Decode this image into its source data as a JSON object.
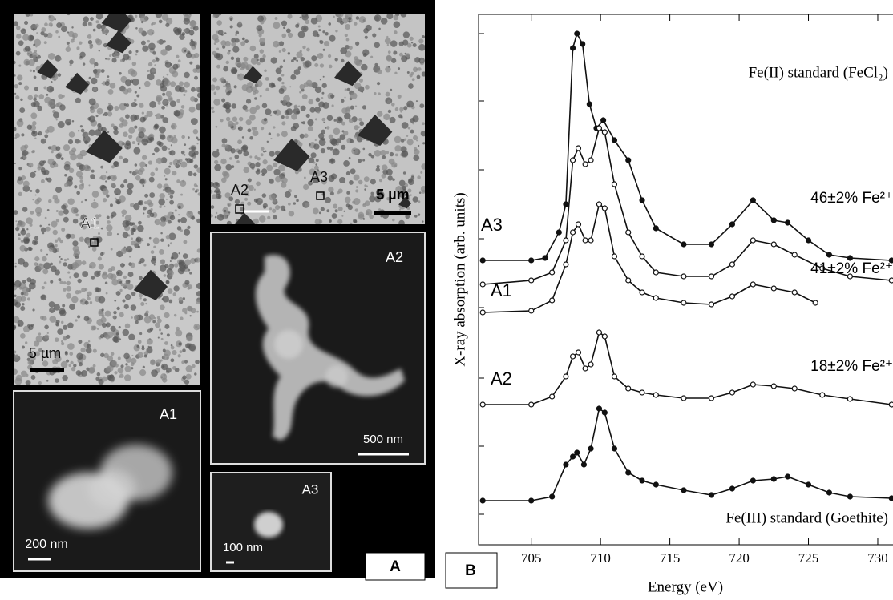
{
  "panel_a": {
    "label": "A",
    "overview_left": {
      "site": "A1",
      "scale": "5 µm"
    },
    "overview_right": {
      "sites": [
        "A2",
        "A3"
      ],
      "scale": "5 µm"
    },
    "zoom_a1": {
      "site": "A1",
      "scale": "200 nm"
    },
    "zoom_a2": {
      "site": "A2",
      "scale": "500 nm"
    },
    "zoom_a3": {
      "site": "A3",
      "scale": "100 nm"
    }
  },
  "chart_data": {
    "type": "line",
    "panel_label": "B",
    "x_label": "Energy (eV)",
    "y_label": "X-ray absorption (arb. units)",
    "xlim": [
      701.2,
      731.1
    ],
    "xticks": [
      705,
      710,
      715,
      720,
      725,
      730
    ],
    "ylim": [
      0,
      662
    ],
    "yticks": [
      38,
      123,
      208,
      296,
      382,
      468,
      554,
      638
    ],
    "series": [
      {
        "name": "Fe(II) standard (FeCl₂)",
        "marker": "filled",
        "color": "#111",
        "x": [
          701.5,
          705,
          706,
          707,
          707.5,
          708,
          708.3,
          708.7,
          709.2,
          709.7,
          710.2,
          711,
          712,
          713,
          714,
          716,
          718,
          719.5,
          721,
          722.5,
          723.5,
          725,
          726.5,
          728,
          731
        ],
        "values": [
          355,
          355,
          358,
          390,
          425,
          620,
          638,
          625,
          550,
          520,
          530,
          505,
          480,
          430,
          395,
          375,
          375,
          400,
          430,
          405,
          402,
          380,
          362,
          358,
          355
        ]
      },
      {
        "name": "A3",
        "fe2_label": "46±2% Fe²⁺",
        "marker": "open",
        "color": "#111",
        "x": [
          701.5,
          705,
          706.5,
          707.5,
          708,
          708.4,
          708.9,
          709.3,
          709.9,
          710.3,
          711,
          712,
          713,
          714,
          716,
          718,
          719.5,
          721,
          722.5,
          724,
          726,
          728,
          731
        ],
        "values": [
          325,
          330,
          340,
          380,
          480,
          495,
          475,
          480,
          520,
          515,
          450,
          390,
          360,
          340,
          335,
          335,
          350,
          380,
          375,
          362,
          345,
          335,
          330
        ]
      },
      {
        "name": "A1",
        "fe2_label": "41±2% Fe²⁺",
        "marker": "open",
        "color": "#111",
        "x": [
          701.5,
          705,
          706.5,
          707.5,
          708,
          708.4,
          708.9,
          709.3,
          709.9,
          710.3,
          711,
          712,
          713,
          714,
          716,
          718,
          719.5,
          721,
          722.5,
          724,
          725.5
        ],
        "values": [
          290,
          292,
          305,
          350,
          390,
          400,
          380,
          380,
          425,
          420,
          360,
          330,
          315,
          308,
          302,
          300,
          310,
          325,
          320,
          315,
          302
        ]
      },
      {
        "name": "A2",
        "fe2_label": "18±2% Fe²⁺",
        "marker": "open",
        "color": "#111",
        "x": [
          701.5,
          705,
          706.5,
          707.5,
          708,
          708.4,
          708.9,
          709.3,
          709.9,
          710.3,
          711,
          712,
          713,
          714,
          716,
          718,
          719.5,
          721,
          722.5,
          724,
          726,
          728,
          731
        ],
        "values": [
          175,
          175,
          185,
          210,
          235,
          240,
          220,
          225,
          265,
          260,
          210,
          195,
          190,
          187,
          183,
          183,
          190,
          200,
          198,
          195,
          187,
          182,
          175
        ]
      },
      {
        "name": "Fe(III) standard (Goethite)",
        "marker": "filled",
        "color": "#111",
        "x": [
          701.5,
          705,
          706.5,
          707.5,
          708,
          708.3,
          708.8,
          709.3,
          709.9,
          710.3,
          711,
          712,
          713,
          714,
          716,
          718,
          719.5,
          721,
          722.5,
          723.5,
          725,
          726.5,
          728,
          731
        ],
        "values": [
          55,
          55,
          60,
          100,
          110,
          115,
          100,
          120,
          170,
          165,
          120,
          90,
          80,
          75,
          68,
          62,
          70,
          80,
          82,
          85,
          75,
          65,
          60,
          58
        ]
      }
    ]
  }
}
